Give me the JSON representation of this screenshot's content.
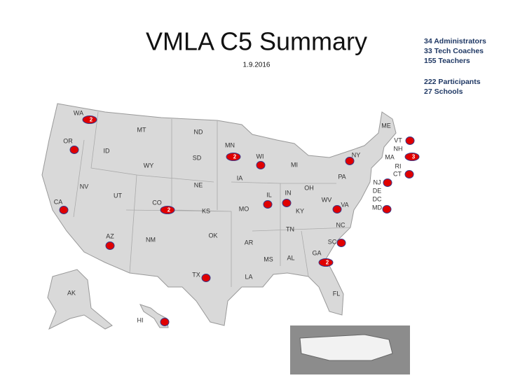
{
  "header": {
    "title": "VMLA C5 Summary",
    "date": "1.9.2016"
  },
  "stats": [
    "34 Administrators",
    "33 Tech Coaches",
    "155 Teachers",
    "222 Participants",
    "27 Schools"
  ],
  "map": {
    "states": [
      "WA",
      "MT",
      "ND",
      "MN",
      "OR",
      "ID",
      "SD",
      "WI",
      "MI",
      "WY",
      "NE",
      "IA",
      "IL",
      "IN",
      "OH",
      "PA",
      "NY",
      "NV",
      "UT",
      "CO",
      "KS",
      "MO",
      "KY",
      "WV",
      "VA",
      "CA",
      "TN",
      "NC",
      "AZ",
      "NM",
      "OK",
      "AR",
      "SC",
      "MS",
      "AL",
      "GA",
      "TX",
      "LA",
      "FL",
      "AK",
      "HI",
      "ME",
      "VT",
      "NH",
      "MA",
      "RI",
      "CT",
      "NJ",
      "DE",
      "DC",
      "MD"
    ],
    "markers": [
      {
        "state": "WA",
        "count": 2
      },
      {
        "state": "OR"
      },
      {
        "state": "MN",
        "count": 2
      },
      {
        "state": "WI"
      },
      {
        "state": "NY"
      },
      {
        "state": "VT"
      },
      {
        "state": "MA",
        "count": 3
      },
      {
        "state": "CT"
      },
      {
        "state": "NJ"
      },
      {
        "state": "MD"
      },
      {
        "state": "CA"
      },
      {
        "state": "CO",
        "count": 2
      },
      {
        "state": "IL"
      },
      {
        "state": "IN"
      },
      {
        "state": "VA"
      },
      {
        "state": "AZ"
      },
      {
        "state": "SC"
      },
      {
        "state": "GA",
        "count": 2
      },
      {
        "state": "TX"
      },
      {
        "state": "HI"
      }
    ]
  }
}
